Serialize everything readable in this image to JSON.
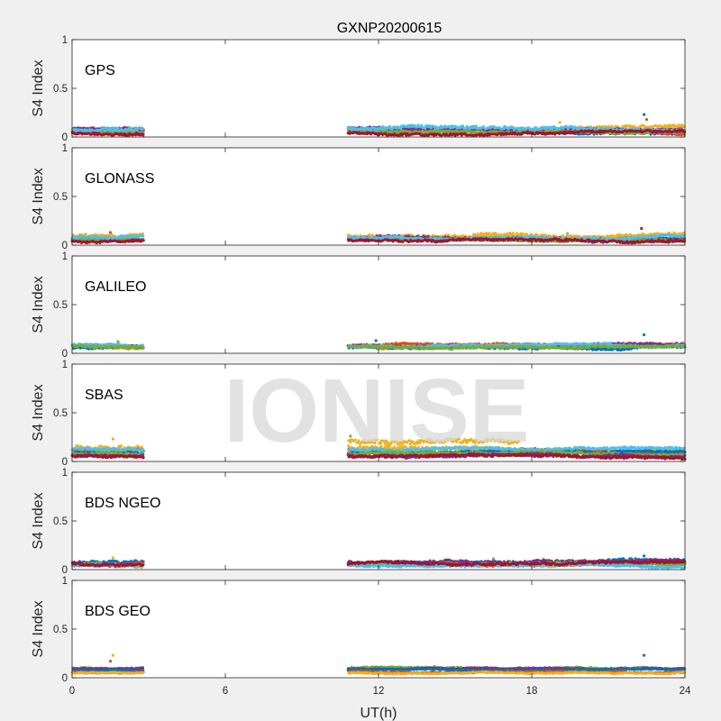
{
  "title": "GXNP20200615",
  "xlabel": "UT(h)",
  "ylabel": "S4 Index",
  "watermark": "IONISE",
  "xlim": [
    0,
    24
  ],
  "ylim": [
    0,
    1
  ],
  "x_ticks": [
    0,
    6,
    12,
    18,
    24
  ],
  "x_tick_labels": [
    "0",
    "6",
    "12",
    "18",
    "24"
  ],
  "y_ticks": [
    0,
    0.5,
    1
  ],
  "y_tick_labels": [
    "0",
    "0.5",
    "1"
  ],
  "colors": [
    "#0072BD",
    "#D95319",
    "#EDB120",
    "#7E2F8E",
    "#77AC30",
    "#4DBEEE",
    "#A2142F"
  ],
  "chart_data": [
    {
      "type": "scatter",
      "panel_label": "GPS",
      "xlim": [
        0,
        24
      ],
      "ylim": [
        0,
        1
      ],
      "segments": [
        {
          "x": [
            0,
            2.8
          ]
        },
        {
          "x": [
            10.8,
            24
          ]
        }
      ],
      "series": [
        {
          "color": "#0072BD",
          "base": 0.07,
          "spread": 0.03
        },
        {
          "color": "#D95319",
          "base": 0.05,
          "spread": 0.02
        },
        {
          "color": "#EDB120",
          "base": 0.08,
          "spread": 0.03
        },
        {
          "color": "#7E2F8E",
          "base": 0.09,
          "spread": 0.02
        },
        {
          "color": "#77AC30",
          "base": 0.06,
          "spread": 0.02
        },
        {
          "color": "#4DBEEE",
          "base": 0.08,
          "spread": 0.03
        },
        {
          "color": "#A2142F",
          "base": 0.04,
          "spread": 0.02
        }
      ],
      "spikes": [
        {
          "x": 22.4,
          "y": 0.23
        },
        {
          "x": 22.5,
          "y": 0.18
        },
        {
          "x": 19.1,
          "y": 0.15
        }
      ]
    },
    {
      "type": "scatter",
      "panel_label": "GLONASS",
      "xlim": [
        0,
        24
      ],
      "ylim": [
        0,
        1
      ],
      "segments": [
        {
          "x": [
            0,
            2.8
          ]
        },
        {
          "x": [
            10.8,
            24
          ]
        }
      ],
      "series": [
        {
          "color": "#0072BD",
          "base": 0.06,
          "spread": 0.02
        },
        {
          "color": "#D95319",
          "base": 0.05,
          "spread": 0.02
        },
        {
          "color": "#EDB120",
          "base": 0.09,
          "spread": 0.03
        },
        {
          "color": "#7E2F8E",
          "base": 0.07,
          "spread": 0.03
        },
        {
          "color": "#77AC30",
          "base": 0.06,
          "spread": 0.02
        },
        {
          "color": "#4DBEEE",
          "base": 0.08,
          "spread": 0.02
        },
        {
          "color": "#A2142F",
          "base": 0.05,
          "spread": 0.02
        }
      ],
      "spikes": [
        {
          "x": 22.3,
          "y": 0.17
        },
        {
          "x": 1.5,
          "y": 0.13
        },
        {
          "x": 19.4,
          "y": 0.12
        }
      ]
    },
    {
      "type": "scatter",
      "panel_label": "GALILEO",
      "xlim": [
        0,
        24
      ],
      "ylim": [
        0,
        1
      ],
      "segments": [
        {
          "x": [
            0,
            2.8
          ]
        },
        {
          "x": [
            10.8,
            24
          ]
        }
      ],
      "series": [
        {
          "color": "#D95319",
          "base": 0.08,
          "spread": 0.02
        },
        {
          "color": "#EDB120",
          "base": 0.07,
          "spread": 0.02
        },
        {
          "color": "#7E2F8E",
          "base": 0.08,
          "spread": 0.02
        },
        {
          "color": "#0072BD",
          "base": 0.06,
          "spread": 0.02
        },
        {
          "color": "#4DBEEE",
          "base": 0.08,
          "spread": 0.02
        },
        {
          "color": "#77AC30",
          "base": 0.07,
          "spread": 0.02
        }
      ],
      "spikes": [
        {
          "x": 22.4,
          "y": 0.19
        },
        {
          "x": 1.8,
          "y": 0.12
        },
        {
          "x": 11.9,
          "y": 0.13
        }
      ]
    },
    {
      "type": "scatter",
      "panel_label": "SBAS",
      "xlim": [
        0,
        24
      ],
      "ylim": [
        0,
        1
      ],
      "segments": [
        {
          "x": [
            0,
            2.8
          ]
        },
        {
          "x": [
            10.8,
            24
          ]
        }
      ],
      "series": [
        {
          "color": "#EDB120",
          "base": 0.21,
          "spread": 0.04,
          "range": [
            10.8,
            17.5
          ]
        },
        {
          "color": "#EDB120",
          "base": 0.14,
          "spread": 0.04
        },
        {
          "color": "#D95319",
          "base": 0.11,
          "spread": 0.03
        },
        {
          "color": "#0072BD",
          "base": 0.09,
          "spread": 0.02
        },
        {
          "color": "#4DBEEE",
          "base": 0.12,
          "spread": 0.02
        },
        {
          "color": "#77AC30",
          "base": 0.08,
          "spread": 0.02
        },
        {
          "color": "#7E2F8E",
          "base": 0.06,
          "spread": 0.02
        },
        {
          "color": "#A2142F",
          "base": 0.05,
          "spread": 0.02
        }
      ],
      "spikes": [
        {
          "x": 10.9,
          "y": 0.26
        },
        {
          "x": 1.6,
          "y": 0.23
        }
      ]
    },
    {
      "type": "scatter",
      "panel_label": "BDS NGEO",
      "xlim": [
        0,
        24
      ],
      "ylim": [
        0,
        1
      ],
      "segments": [
        {
          "x": [
            0,
            2.8
          ]
        },
        {
          "x": [
            10.8,
            24
          ]
        }
      ],
      "series": [
        {
          "color": "#0072BD",
          "base": 0.07,
          "spread": 0.03
        },
        {
          "color": "#D95319",
          "base": 0.06,
          "spread": 0.02
        },
        {
          "color": "#EDB120",
          "base": 0.05,
          "spread": 0.02
        },
        {
          "color": "#7E2F8E",
          "base": 0.07,
          "spread": 0.03
        },
        {
          "color": "#77AC30",
          "base": 0.05,
          "spread": 0.02
        },
        {
          "color": "#4DBEEE",
          "base": 0.04,
          "spread": 0.02
        },
        {
          "color": "#A2142F",
          "base": 0.06,
          "spread": 0.02
        }
      ],
      "spikes": [
        {
          "x": 22.4,
          "y": 0.14
        },
        {
          "x": 1.6,
          "y": 0.12
        },
        {
          "x": 16.5,
          "y": 0.11
        }
      ]
    },
    {
      "type": "scatter",
      "panel_label": "BDS GEO",
      "xlim": [
        0,
        24
      ],
      "ylim": [
        0,
        1
      ],
      "segments": [
        {
          "x": [
            0,
            2.8
          ]
        },
        {
          "x": [
            10.8,
            24
          ]
        }
      ],
      "series": [
        {
          "color": "#77AC30",
          "base": 0.1,
          "spread": 0.01
        },
        {
          "color": "#7E2F8E",
          "base": 0.09,
          "spread": 0.01
        },
        {
          "color": "#0072BD",
          "base": 0.08,
          "spread": 0.01
        },
        {
          "color": "#D95319",
          "base": 0.06,
          "spread": 0.01
        },
        {
          "color": "#EDB120",
          "base": 0.05,
          "spread": 0.01
        }
      ],
      "spikes": [
        {
          "x": 1.6,
          "y": 0.23
        },
        {
          "x": 22.4,
          "y": 0.23
        },
        {
          "x": 1.5,
          "y": 0.17
        }
      ]
    }
  ]
}
